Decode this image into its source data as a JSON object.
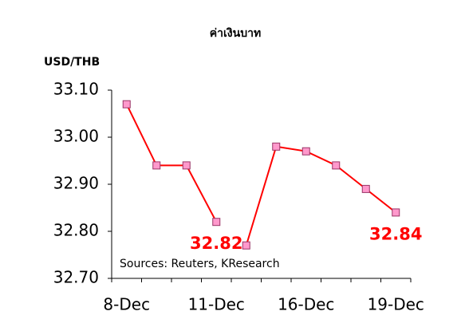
{
  "chart_data": {
    "type": "line",
    "title": "ค่าเงินบาท",
    "y_label": "USD/THB",
    "annotation": "Sources: Reuters, KResearch",
    "categories": [
      "8-Dec",
      null,
      null,
      "11-Dec",
      null,
      null,
      "16-Dec",
      null,
      null,
      "19-Dec"
    ],
    "series": [
      {
        "color": "#ff0000",
        "marker_color": "#ff99cc",
        "values": [
          33.07,
          32.94,
          32.94,
          32.82,
          null,
          null,
          null,
          null,
          null,
          null
        ],
        "value_labels": [
          null,
          null,
          null,
          "32.82",
          null,
          null,
          null,
          null,
          null,
          null
        ]
      },
      {
        "color": "#ff0000",
        "marker_color": "#ff99cc",
        "values": [
          null,
          null,
          null,
          null,
          32.77,
          32.98,
          32.97,
          32.94,
          32.89,
          32.84
        ],
        "value_labels": [
          null,
          null,
          null,
          null,
          null,
          null,
          null,
          null,
          null,
          "32.84"
        ]
      }
    ],
    "ylim": [
      32.7,
      33.1
    ],
    "yticks": [
      {
        "value": 32.7,
        "label": "32.70"
      },
      {
        "value": 32.8,
        "label": "32.80"
      },
      {
        "value": 32.9,
        "label": "32.90"
      },
      {
        "value": 33.0,
        "label": "33.00"
      },
      {
        "value": 33.1,
        "label": "33.10"
      }
    ],
    "grid": false
  }
}
